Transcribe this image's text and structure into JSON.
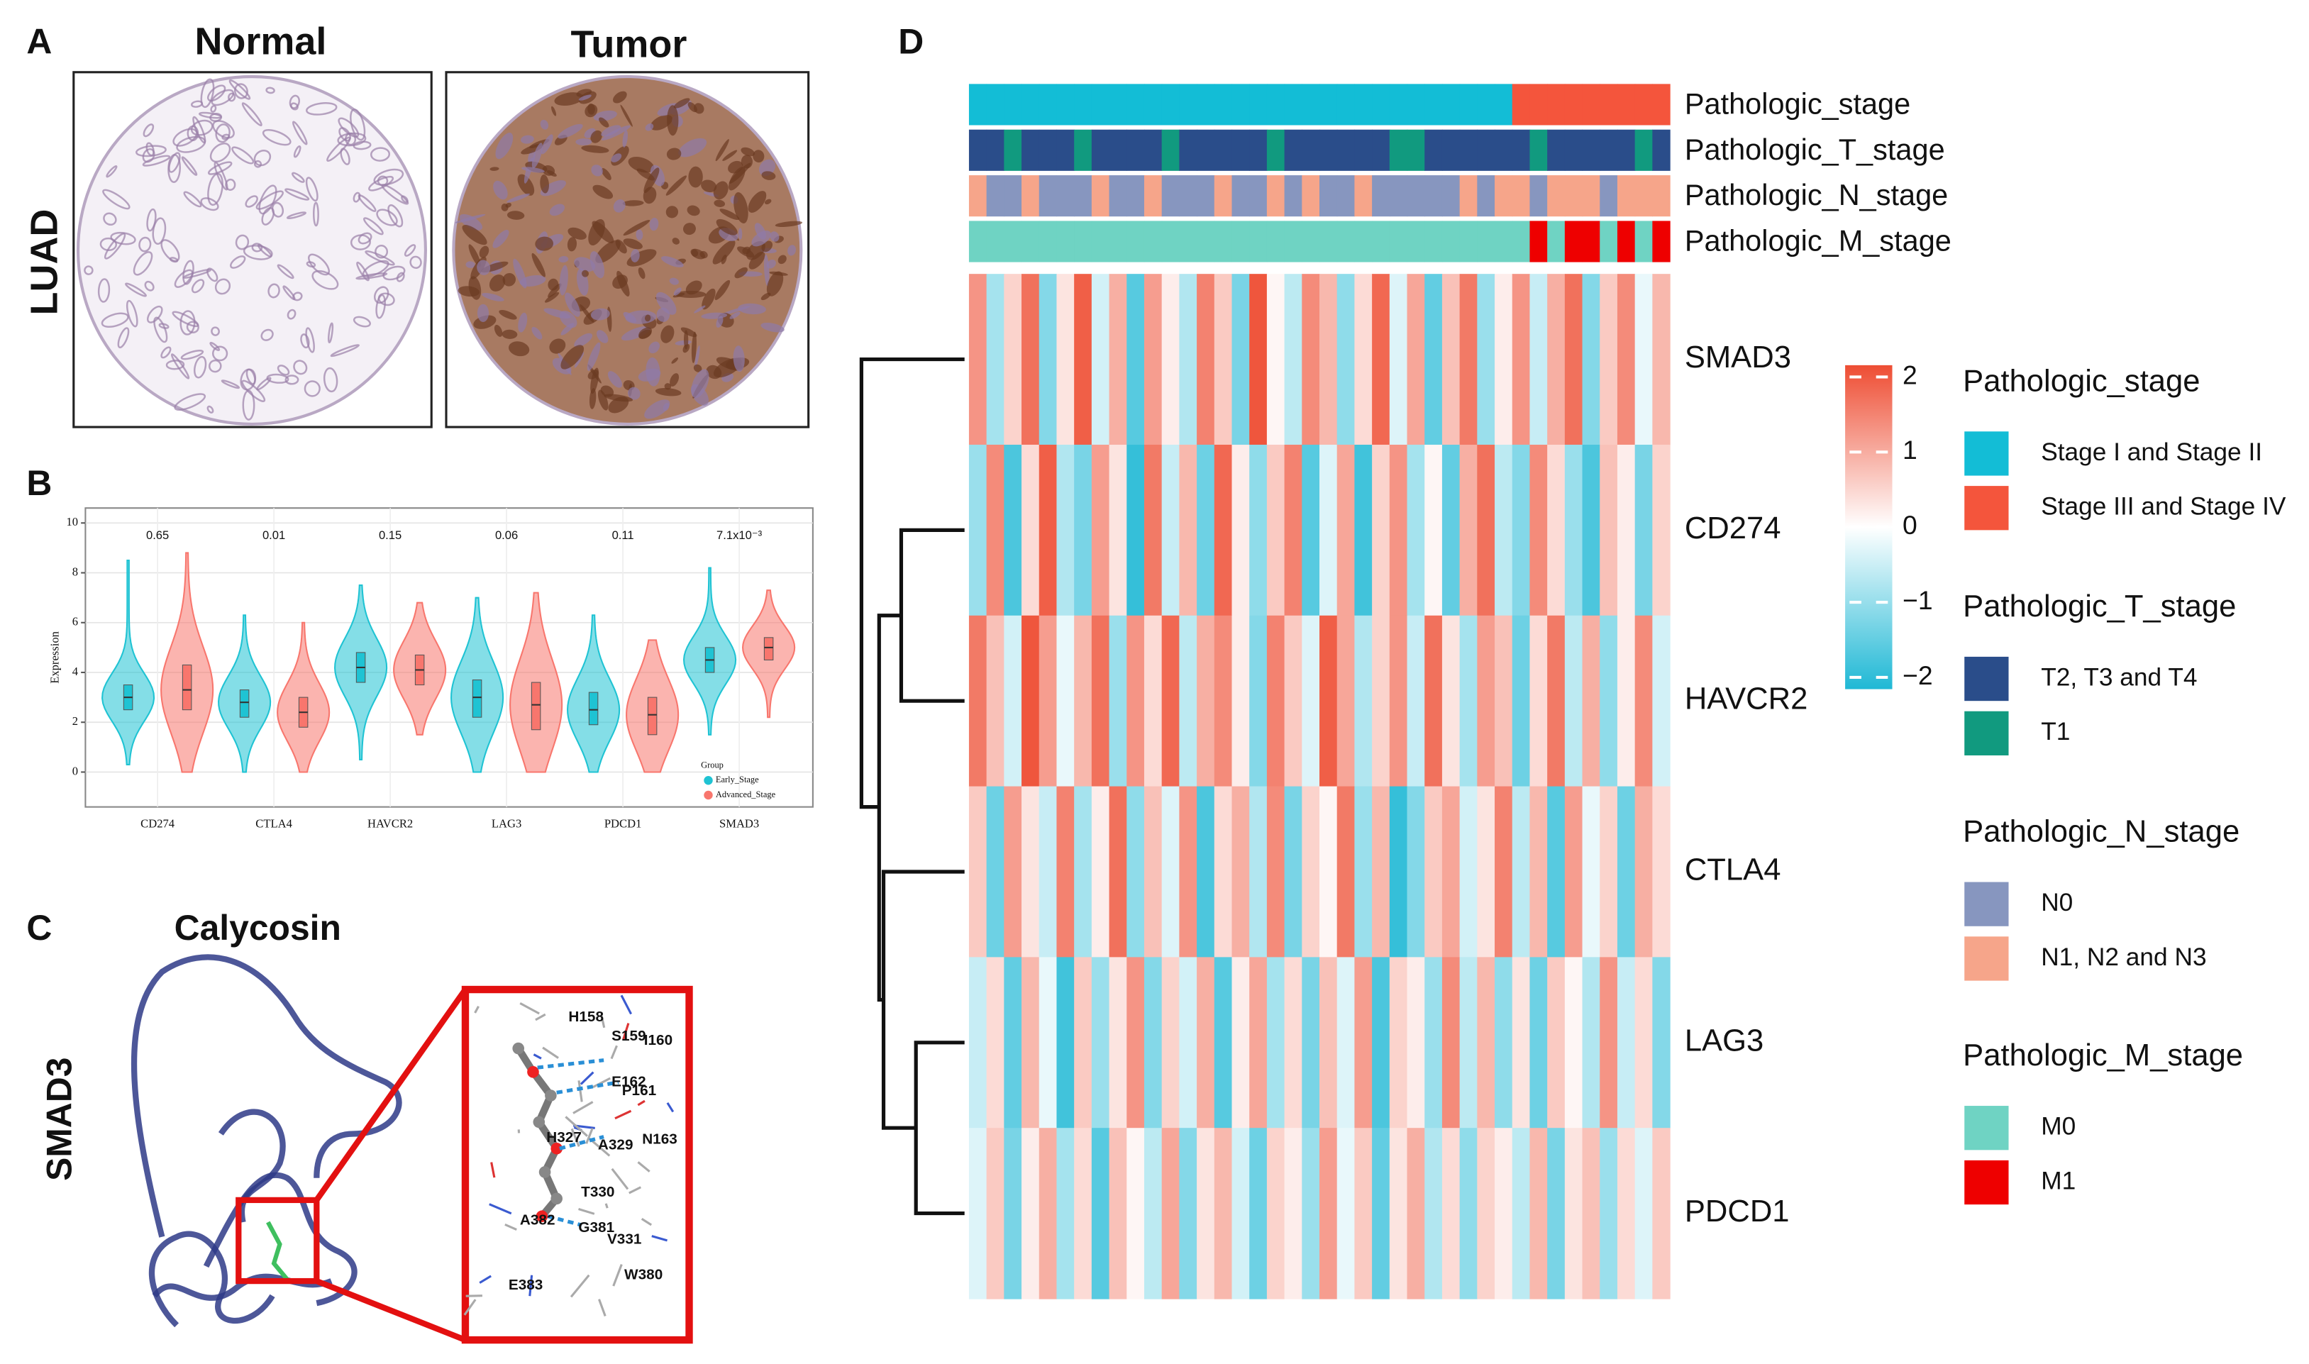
{
  "panels": {
    "labels": [
      "A",
      "B",
      "C",
      "D"
    ],
    "A": {
      "columns": [
        "Normal",
        "Tumor"
      ],
      "row": "LUAD"
    },
    "C": {
      "title": "Calycosin",
      "row": "SMAD3",
      "residues": [
        "H158",
        "S159",
        "I160",
        "E162",
        "P161",
        "H327",
        "A329",
        "N163",
        "T330",
        "A382",
        "G381",
        "V331",
        "W380",
        "E383"
      ]
    }
  },
  "chart_data": [
    {
      "type": "violin",
      "ylabel": "Expression",
      "categories": [
        "CD274",
        "CTLA4",
        "HAVCR2",
        "LAG3",
        "PDCD1",
        "SMAD3"
      ],
      "pvalues": [
        "0.65",
        "0.01",
        "0.15",
        "0.06",
        "0.11",
        "7.1x10⁻³"
      ],
      "ylim": [
        -1.4,
        10.6
      ],
      "yticks": [
        0,
        2,
        4,
        6,
        8,
        10
      ],
      "grid": true,
      "legend_title": "Group",
      "series": [
        {
          "name": "Early_Stage",
          "color": "#1fc3d3",
          "values": [
            3,
            2.8,
            4.2,
            3,
            2.5,
            4.5
          ],
          "q1": [
            2.5,
            2.2,
            3.6,
            2.2,
            1.9,
            4
          ],
          "q3": [
            3.5,
            3.3,
            4.8,
            3.7,
            3.2,
            5
          ],
          "min": [
            0.3,
            0,
            0.5,
            0,
            0,
            1.5
          ],
          "max": [
            8.5,
            6.3,
            7.5,
            7,
            6.3,
            8.2
          ]
        },
        {
          "name": "Advanced_Stage",
          "color": "#f8766d",
          "values": [
            3.3,
            2.4,
            4.1,
            2.7,
            2.3,
            5
          ],
          "q1": [
            2.5,
            1.8,
            3.5,
            1.7,
            1.5,
            4.5
          ],
          "q3": [
            4.3,
            3,
            4.7,
            3.6,
            3,
            5.4
          ],
          "min": [
            0,
            0,
            1.5,
            0,
            0,
            2.2
          ],
          "max": [
            8.8,
            6,
            6.8,
            7.2,
            5.3,
            7.3
          ]
        }
      ]
    },
    {
      "type": "heatmap",
      "rows": [
        "SMAD3",
        "CD274",
        "HAVCR2",
        "CTLA4",
        "LAG3",
        "PDCD1"
      ],
      "values": [
        [
          1.2,
          -0.8,
          0.5,
          1.6,
          -1.1,
          0.3,
          1.8,
          -0.4,
          0.9,
          -1.5,
          1.1,
          0.2,
          -0.7,
          1.4,
          0.6,
          -1.2,
          1.9,
          0.1,
          -0.6,
          1.3,
          0.8,
          -1.0,
          0.4,
          1.7,
          -0.3,
          1.0,
          -1.4,
          0.7,
          1.5,
          -0.9,
          0.2,
          1.2,
          -0.5,
          0.9,
          1.6,
          -1.1,
          0.6,
          1.3,
          -0.2,
          0.8
        ],
        [
          -0.9,
          1.3,
          -1.6,
          0.4,
          1.8,
          -0.7,
          -1.2,
          1.1,
          0.3,
          -1.8,
          1.5,
          -0.5,
          0.8,
          -1.3,
          1.7,
          0.2,
          -1.0,
          0.6,
          1.4,
          -1.5,
          -0.3,
          1.0,
          -1.7,
          0.5,
          1.2,
          -0.8,
          0.1,
          -1.4,
          0.9,
          1.6,
          -0.6,
          -1.1,
          1.3,
          0.4,
          -0.9,
          -1.6,
          0.7,
          0.2,
          -1.2,
          0.5
        ],
        [
          1.5,
          0.7,
          -0.4,
          1.9,
          1.1,
          -0.2,
          0.8,
          1.6,
          -0.9,
          1.2,
          0.4,
          1.7,
          -0.6,
          0.9,
          1.3,
          0.2,
          -1.1,
          1.4,
          0.6,
          -0.3,
          1.8,
          1.0,
          -0.7,
          0.5,
          1.2,
          -0.5,
          1.6,
          0.3,
          -0.8,
          1.1,
          0.7,
          -1.3,
          0.4,
          1.5,
          -0.6,
          0.9,
          -1.0,
          0.2,
          1.3,
          -0.4
        ],
        [
          0.6,
          -1.3,
          1.1,
          0.3,
          -0.5,
          1.4,
          -0.8,
          0.2,
          1.6,
          -1.0,
          0.7,
          -0.3,
          1.2,
          -1.6,
          0.4,
          0.9,
          -0.7,
          1.3,
          -1.2,
          0.5,
          0.1,
          1.5,
          -0.9,
          0.8,
          -1.8,
          -1.1,
          0.6,
          1.0,
          -0.4,
          0.3,
          1.4,
          -0.6,
          0.8,
          -1.5,
          1.1,
          -0.2,
          0.5,
          -1.3,
          0.9,
          0.4
        ],
        [
          -0.5,
          0.4,
          -1.4,
          0.8,
          -0.2,
          -1.7,
          0.6,
          -0.9,
          0.3,
          1.2,
          -1.1,
          0.5,
          -0.4,
          0.9,
          -1.5,
          0.2,
          1.0,
          -0.8,
          0.4,
          -1.2,
          0.7,
          -0.3,
          1.1,
          -1.6,
          0.5,
          0.2,
          -0.9,
          1.3,
          -0.6,
          0.8,
          -1.0,
          0.3,
          -1.3,
          0.6,
          0.1,
          -0.7,
          1.2,
          -0.5,
          0.4,
          -1.1
        ],
        [
          -0.3,
          0.6,
          -1.2,
          0.2,
          0.9,
          -0.8,
          0.4,
          -1.5,
          0.7,
          0.1,
          -0.6,
          1.0,
          -1.1,
          0.3,
          0.8,
          -0.4,
          -1.3,
          0.5,
          0.2,
          -0.9,
          1.1,
          -0.2,
          0.6,
          -1.4,
          0.3,
          0.9,
          -0.7,
          0.4,
          -1.0,
          0.5,
          0.2,
          -0.6,
          0.8,
          -1.2,
          0.3,
          0.7,
          -0.9,
          0.4,
          -0.3,
          0.6
        ]
      ],
      "zlim": [
        -2,
        2
      ],
      "zticks": [
        2,
        1,
        0,
        {
          "value": -1,
          "label": "−1"
        },
        {
          "value": -2,
          "label": "−2"
        }
      ],
      "colors": [
        "#1fb8d5",
        "#ffffff",
        "#ee4d33"
      ],
      "annotations": [
        {
          "name": "Pathologic_stage",
          "classes": [
            0,
            0,
            0,
            0,
            0,
            0,
            0,
            0,
            0,
            0,
            0,
            0,
            0,
            0,
            0,
            0,
            0,
            0,
            0,
            0,
            0,
            0,
            0,
            0,
            0,
            0,
            0,
            0,
            0,
            0,
            0,
            1,
            1,
            1,
            1,
            1,
            1,
            1,
            1,
            1
          ],
          "levels": [
            {
              "label": "Stage I and Stage II",
              "color": "#13bdd6"
            },
            {
              "label": "Stage III and Stage IV",
              "color": "#f4553c"
            }
          ]
        },
        {
          "name": "Pathologic_T_stage",
          "classes": [
            0,
            0,
            1,
            0,
            0,
            0,
            1,
            0,
            0,
            0,
            0,
            1,
            0,
            0,
            0,
            0,
            0,
            1,
            0,
            0,
            0,
            0,
            0,
            0,
            1,
            1,
            0,
            0,
            0,
            0,
            0,
            0,
            1,
            0,
            0,
            0,
            0,
            0,
            1,
            0
          ],
          "levels": [
            {
              "label": "T2, T3 and T4",
              "color": "#2a4d8a"
            },
            {
              "label": "T1",
              "color": "#119a7f"
            }
          ]
        },
        {
          "name": "Pathologic_N_stage",
          "classes": [
            1,
            0,
            0,
            1,
            0,
            0,
            0,
            1,
            0,
            0,
            1,
            0,
            0,
            0,
            1,
            0,
            0,
            1,
            0,
            1,
            0,
            0,
            1,
            0,
            0,
            0,
            0,
            0,
            1,
            0,
            1,
            1,
            0,
            1,
            1,
            1,
            0,
            1,
            1,
            1
          ],
          "levels": [
            {
              "label": "N0",
              "color": "#8796bf"
            },
            {
              "label": "N1, N2 and N3",
              "color": "#f6a58a"
            }
          ]
        },
        {
          "name": "Pathologic_M_stage",
          "classes": [
            0,
            0,
            0,
            0,
            0,
            0,
            0,
            0,
            0,
            0,
            0,
            0,
            0,
            0,
            0,
            0,
            0,
            0,
            0,
            0,
            0,
            0,
            0,
            0,
            0,
            0,
            0,
            0,
            0,
            0,
            0,
            0,
            1,
            0,
            1,
            1,
            0,
            1,
            0,
            1
          ],
          "levels": [
            {
              "label": "M0",
              "color": "#6fd3c3"
            },
            {
              "label": "M1",
              "color": "#ee0000"
            }
          ]
        }
      ]
    }
  ]
}
